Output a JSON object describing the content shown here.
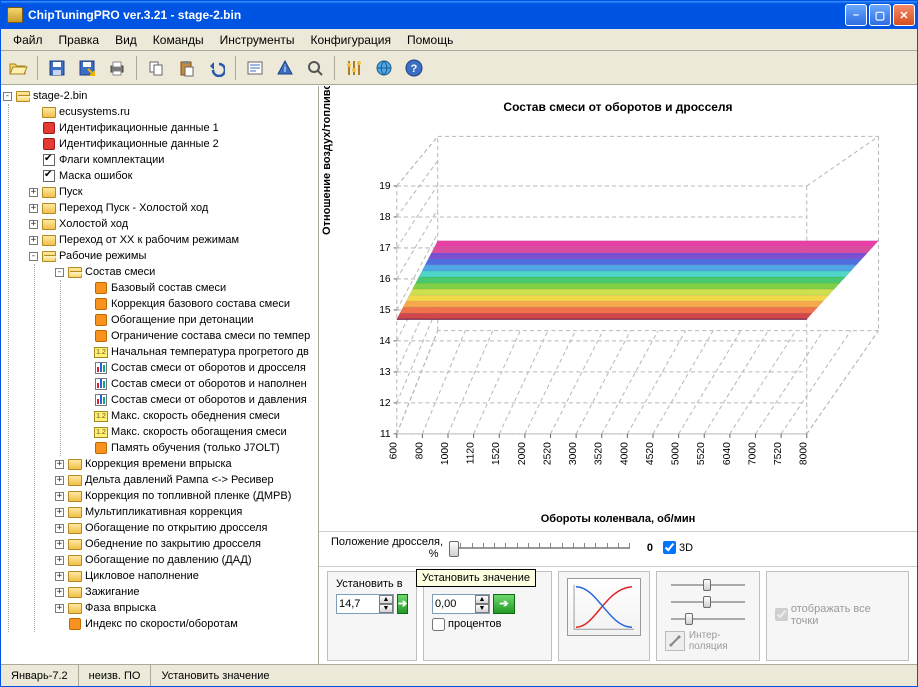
{
  "window": {
    "title": "ChipTuningPRO ver.3.21 - stage-2.bin"
  },
  "menu": [
    "Файл",
    "Правка",
    "Вид",
    "Команды",
    "Инструменты",
    "Конфигурация",
    "Помощь"
  ],
  "toolbar_icons": [
    "open",
    "save",
    "save-as",
    "print",
    "copy",
    "paste",
    "undo",
    "edit-pane",
    "info",
    "search",
    "tuning-tool",
    "globe",
    "help"
  ],
  "tree": {
    "root": "stage-2.bin",
    "top": [
      {
        "icon": "folder",
        "label": "ecusystems.ru",
        "exp": null
      },
      {
        "icon": "red",
        "label": "Идентификационные данные 1",
        "exp": null
      },
      {
        "icon": "red",
        "label": "Идентификационные данные 2",
        "exp": null
      },
      {
        "icon": "check",
        "label": "Флаги комплектации",
        "exp": null
      },
      {
        "icon": "check",
        "label": "Маска ошибок",
        "exp": null
      },
      {
        "icon": "folder",
        "label": "Пуск",
        "exp": "+"
      },
      {
        "icon": "folder",
        "label": "Переход Пуск - Холостой ход",
        "exp": "+"
      },
      {
        "icon": "folder",
        "label": "Холостой ход",
        "exp": "+"
      },
      {
        "icon": "folder",
        "label": "Переход от ХХ к рабочим режимам",
        "exp": "+"
      },
      {
        "icon": "folder-open",
        "label": "Рабочие режимы",
        "exp": "-",
        "children": [
          {
            "icon": "folder-open",
            "label": "Состав смеси",
            "exp": "-",
            "children": [
              {
                "icon": "orange",
                "label": "Базовый состав смеси"
              },
              {
                "icon": "orange",
                "label": "Коррекция базового состава смеси"
              },
              {
                "icon": "orange",
                "label": "Обогащение при детонации"
              },
              {
                "icon": "orange",
                "label": "Ограничение состава смеси по темпер"
              },
              {
                "icon": "num",
                "label": "Начальная температура прогретого дв"
              },
              {
                "icon": "bars",
                "label": "Состав смеси от оборотов и дросселя"
              },
              {
                "icon": "bars",
                "label": "Состав смеси от оборотов и наполнен"
              },
              {
                "icon": "bars",
                "label": "Состав смеси от оборотов и давления"
              },
              {
                "icon": "num",
                "label": "Макс. скорость обеднения смеси"
              },
              {
                "icon": "num",
                "label": "Макс. скорость обогащения смеси"
              },
              {
                "icon": "orange",
                "label": "Память обучения (только J7OLT)"
              }
            ]
          },
          {
            "icon": "folder",
            "label": "Коррекция времени впрыска",
            "exp": "+"
          },
          {
            "icon": "folder",
            "label": "Дельта давлений Рампа <-> Ресивер",
            "exp": "+"
          },
          {
            "icon": "folder",
            "label": "Коррекция по топливной пленке (ДМРВ)",
            "exp": "+"
          },
          {
            "icon": "folder",
            "label": "Мультипликативная коррекция",
            "exp": "+"
          },
          {
            "icon": "folder",
            "label": "Обогащение по открытию дросселя",
            "exp": "+"
          },
          {
            "icon": "folder",
            "label": "Обеднение по закрытию дросселя",
            "exp": "+"
          },
          {
            "icon": "folder",
            "label": "Обогащение по давлению (ДАД)",
            "exp": "+"
          },
          {
            "icon": "folder",
            "label": "Цикловое наполнение",
            "exp": "+"
          },
          {
            "icon": "folder",
            "label": "Зажигание",
            "exp": "+"
          },
          {
            "icon": "folder",
            "label": "Фаза впрыска",
            "exp": "+"
          },
          {
            "icon": "orange",
            "label": "Индекс по скорости/оборотам",
            "exp": null
          }
        ]
      }
    ]
  },
  "chart": {
    "title": "Состав смеси от оборотов и дросселя",
    "ylabel": "Отношение воздух/топливо",
    "xlabel": "Обороты коленвала, об/мин",
    "yticks": [
      11,
      12,
      13,
      14,
      15,
      16,
      17,
      18,
      19
    ],
    "xticks": [
      600,
      800,
      1000,
      1120,
      1520,
      2000,
      2520,
      3000,
      3520,
      4000,
      4520,
      5000,
      5520,
      6040,
      7000,
      7520,
      8000
    ],
    "surface_colors": [
      "#e83fa7",
      "#d94da0",
      "#7b4fd1",
      "#4f6fe0",
      "#4fa7e6",
      "#4fd6c9",
      "#48c96f",
      "#7fd048",
      "#cde04f",
      "#f1d84a",
      "#f5a84c",
      "#ef724b",
      "#cf474b"
    ],
    "background": "#ffffff",
    "grid_color": "#b8b8b8"
  },
  "throttle": {
    "label": "Положение дросселя,\n                                %",
    "value": "0",
    "cb3d": "3D"
  },
  "set": {
    "label": "Установить в",
    "val1": "14,7",
    "val2": "0,00",
    "percent": "процентов",
    "tooltip": "Установить значение",
    "interp": "Интер-\nполяция",
    "showall": "отображать все точки"
  },
  "status": {
    "c1": "Январь-7.2",
    "c2": "неизв. ПО",
    "c3": "Установить значение"
  }
}
